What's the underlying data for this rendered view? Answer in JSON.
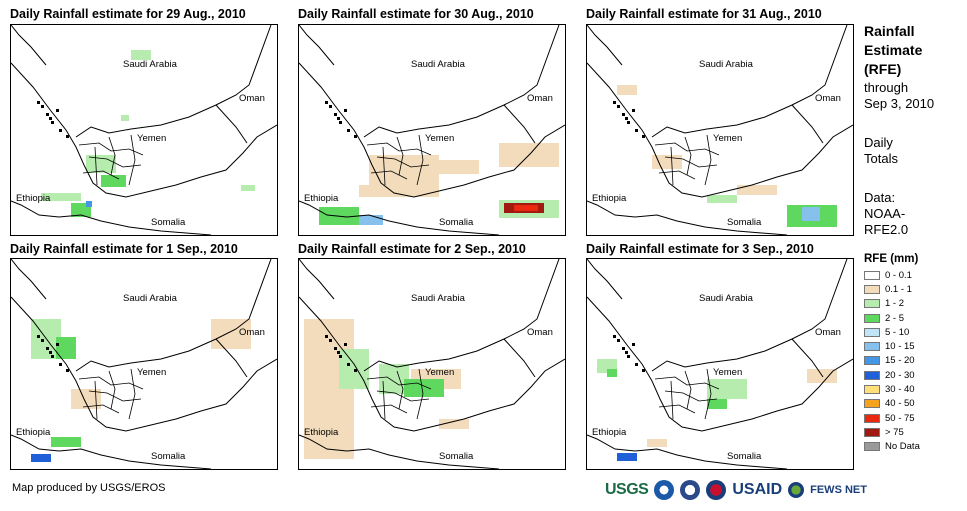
{
  "panels": [
    {
      "title": "Daily Rainfall estimate for 29 Aug., 2010",
      "labels": {
        "saudi": "Saudi Arabia",
        "oman": "Oman",
        "yemen": "Yemen",
        "ethiopia": "Ethiopia",
        "somalia": "Somalia"
      }
    },
    {
      "title": "Daily Rainfall estimate for 30 Aug., 2010",
      "labels": {
        "saudi": "Saudi Arabia",
        "oman": "Oman",
        "yemen": "Yemen",
        "ethiopia": "Ethiopia",
        "somalia": "Somalia"
      }
    },
    {
      "title": "Daily Rainfall estimate for 31 Aug., 2010",
      "labels": {
        "saudi": "Saudi Arabia",
        "oman": "Oman",
        "yemen": "Yemen",
        "ethiopia": "Ethiopia",
        "somalia": "Somalia"
      }
    },
    {
      "title": "Daily Rainfall estimate for 1 Sep., 2010",
      "labels": {
        "saudi": "Saudi Arabia",
        "oman": "Oman",
        "yemen": "Yemen",
        "ethiopia": "Ethiopia",
        "somalia": "Somalia"
      }
    },
    {
      "title": "Daily Rainfall estimate for 2 Sep., 2010",
      "labels": {
        "saudi": "Saudi Arabia",
        "oman": "Oman",
        "yemen": "Yemen",
        "ethiopia": "Ethiopia",
        "somalia": "Somalia"
      }
    },
    {
      "title": "Daily Rainfall estimate for 3 Sep., 2010",
      "labels": {
        "saudi": "Saudi Arabia",
        "oman": "Oman",
        "yemen": "Yemen",
        "ethiopia": "Ethiopia",
        "somalia": "Somalia"
      }
    }
  ],
  "side": {
    "title_lines": [
      "Rainfall",
      "Estimate",
      "(RFE)"
    ],
    "through": "through",
    "date": "Sep 3, 2010",
    "daily": "Daily",
    "totals": "Totals",
    "data_label": "Data:",
    "data_src1": "NOAA-",
    "data_src2": "RFE2.0"
  },
  "legend": {
    "title": "RFE (mm)",
    "items": [
      {
        "label": "0 - 0.1",
        "color": "#ffffff"
      },
      {
        "label": "0.1 - 1",
        "color": "#f2dcbc"
      },
      {
        "label": "1 - 2",
        "color": "#b6ecae"
      },
      {
        "label": "2 - 5",
        "color": "#5ed85e"
      },
      {
        "label": "5 - 10",
        "color": "#bfe6f7"
      },
      {
        "label": "10 - 15",
        "color": "#86c1ee"
      },
      {
        "label": "15 - 20",
        "color": "#4596e4"
      },
      {
        "label": "20 - 30",
        "color": "#1f5fd8"
      },
      {
        "label": "30 - 40",
        "color": "#ffe07a"
      },
      {
        "label": "40 - 50",
        "color": "#f5a21c"
      },
      {
        "label": "50 - 75",
        "color": "#ea2a10"
      },
      {
        "label": "> 75",
        "color": "#a01a12"
      },
      {
        "label": "No Data",
        "color": "#9a9a9a"
      }
    ]
  },
  "credit": "Map produced by USGS/EROS",
  "logos": {
    "usgs": "USGS",
    "usaid": "USAID",
    "fews": "FEWS NET"
  }
}
